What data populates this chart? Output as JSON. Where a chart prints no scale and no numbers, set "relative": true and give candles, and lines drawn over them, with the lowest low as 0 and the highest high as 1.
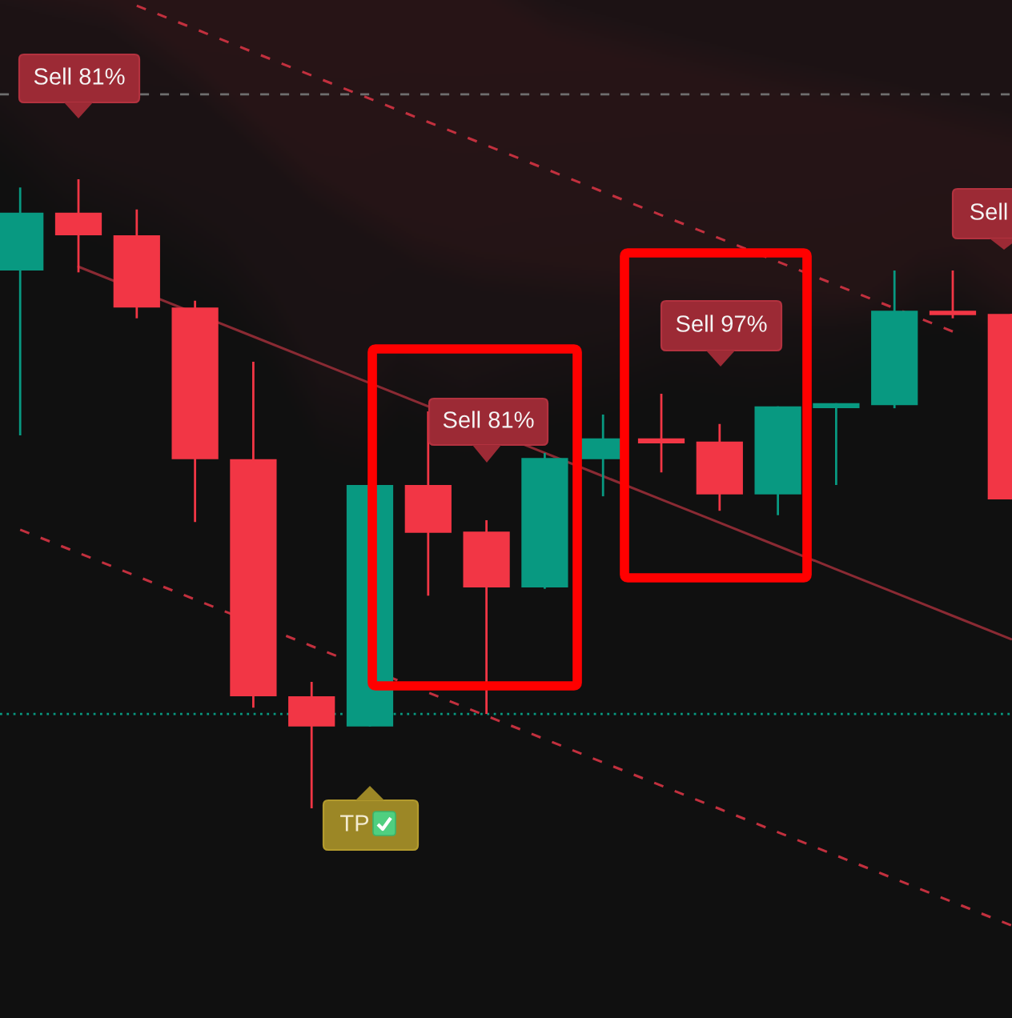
{
  "chart_data": {
    "type": "candlestick",
    "relative": true,
    "tick_labels": false,
    "categories": [
      null,
      null,
      null,
      null,
      null,
      null,
      null,
      null,
      null,
      null,
      null,
      null,
      null,
      null,
      null,
      null,
      null,
      null
    ],
    "ohlc": [
      [
        0.855,
        0.987,
        0.593,
        0.947
      ],
      [
        0.947,
        1.0,
        0.852,
        0.911
      ],
      [
        0.911,
        0.952,
        0.779,
        0.796
      ],
      [
        0.796,
        0.807,
        0.455,
        0.555
      ],
      [
        0.555,
        0.71,
        0.16,
        0.178
      ],
      [
        0.178,
        0.201,
        0.0,
        0.13
      ],
      [
        0.13,
        0.514,
        0.13,
        0.514
      ],
      [
        0.514,
        0.631,
        0.338,
        0.438
      ],
      [
        0.44,
        0.458,
        0.15,
        0.351
      ],
      [
        0.351,
        0.565,
        0.349,
        0.557
      ],
      [
        0.555,
        0.626,
        0.496,
        0.588
      ],
      [
        0.588,
        0.659,
        0.534,
        0.58
      ],
      [
        0.583,
        0.611,
        0.473,
        0.499
      ],
      [
        0.499,
        0.639,
        0.466,
        0.639
      ],
      [
        0.636,
        0.644,
        0.514,
        0.644
      ],
      [
        0.641,
        0.855,
        0.636,
        0.791
      ],
      [
        0.791,
        0.855,
        0.779,
        0.784
      ],
      [
        0.786,
        0.786,
        0.491,
        0.491
      ]
    ],
    "colors": [
      "#089981",
      "#f23645",
      "#f23645",
      "#f23645",
      "#f23645",
      "#f23645",
      "#089981",
      "#f23645",
      "#f23645",
      "#089981",
      "#089981",
      "#f23645",
      "#f23645",
      "#089981",
      "#089981",
      "#089981",
      "#f23645",
      "#f23645"
    ],
    "series": [
      {
        "type": "line",
        "values": [
          null,
          null,
          1.276,
          1.239,
          1.202,
          1.165,
          1.128,
          1.091,
          1.054,
          1.017,
          0.98,
          0.943,
          0.906,
          0.869,
          0.832,
          0.795,
          0.758,
          null
        ],
        "color": "#c2303e",
        "line_style": "dashed"
      },
      {
        "type": "line",
        "values": [
          null,
          0.861,
          null,
          null,
          0.75,
          0.713,
          null,
          null,
          null,
          0.565,
          0.528,
          0.491,
          0.454,
          0.417,
          0.38,
          0.343,
          0.306,
          0.269
        ],
        "color": "#8a2a33",
        "line_style": "solid"
      },
      {
        "type": "line",
        "values": [
          0.443,
          0.406,
          0.369,
          0.332,
          null,
          0.258,
          null,
          0.184,
          0.147,
          0.11,
          0.073,
          0.036,
          -0.001,
          -0.038,
          -0.075,
          -0.112,
          -0.149,
          -0.186
        ],
        "color": "#c2303e",
        "line_style": "dashed"
      }
    ],
    "ref_lines": [
      {
        "axis": "y",
        "value": 1.135,
        "color": "#6e6e6e",
        "line_style": "dashed"
      },
      {
        "axis": "y",
        "value": 0.15,
        "color": "#089981",
        "line_style": "dotted"
      }
    ],
    "annotations": [
      "Sell 81%",
      "Sell 81%",
      "Sell 97%",
      "Sell",
      "TP"
    ]
  }
}
